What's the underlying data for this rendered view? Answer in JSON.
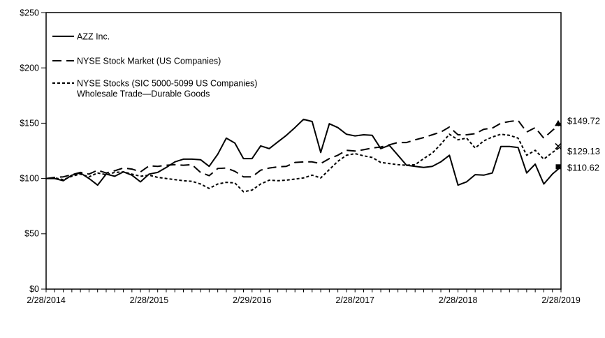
{
  "page": {
    "background": "#ffffff",
    "foreground": "#000000"
  },
  "legend": {
    "items": [
      {
        "label": "AZZ Inc.",
        "line_style": "solid"
      },
      {
        "label": "NYSE Stock Market (US Companies)",
        "line_style": "long-dash"
      },
      {
        "label_line1": "NYSE Stocks (SIC 5000-5099 US Companies)",
        "label_line2": "Wholesale Trade—Durable Goods",
        "line_style": "short-dash"
      }
    ]
  },
  "chart_data": {
    "type": "line",
    "title": "",
    "xlabel": "",
    "ylabel": "",
    "ylim": [
      0,
      250
    ],
    "y_tick_labels": [
      "$0",
      "$50",
      "$100",
      "$150",
      "$200",
      "$250"
    ],
    "x_tick_labels": [
      "2/28/2014",
      "2/28/2015",
      "2/29/2016",
      "2/28/2017",
      "2/28/2018",
      "2/28/2019"
    ],
    "x_minor_ticks": "monthly (61 ticks from 2/28/2014 to 2/28/2019)",
    "grid": false,
    "legend_position": "inside top-left",
    "line_color": "#000000",
    "series": [
      {
        "name": "AZZ Inc.",
        "style": "solid",
        "end_marker": "square",
        "end_label": "$110.62",
        "end_value": 110.62,
        "values": [
          100,
          100,
          98,
          103,
          105,
          100,
          94,
          104,
          102,
          106,
          103,
          97,
          104,
          105.5,
          110,
          115,
          117.5,
          117.5,
          117,
          111,
          122,
          136.5,
          132,
          118,
          118,
          129.5,
          127,
          133,
          139,
          146,
          153.5,
          151.5,
          123.5,
          149.5,
          146,
          140,
          138.5,
          139.5,
          139,
          127,
          130,
          121,
          112,
          111,
          110,
          111,
          115,
          121,
          94,
          97,
          103.5,
          103,
          105,
          129,
          129,
          128,
          105,
          113,
          95,
          104,
          110.62
        ]
      },
      {
        "name": "NYSE Stock Market (US Companies)",
        "style": "long-dash",
        "end_marker": "triangle",
        "end_label": "$149.72",
        "end_value": 149.72,
        "values": [
          100,
          101,
          101.5,
          103.5,
          105.5,
          104,
          107.5,
          105,
          107,
          109.5,
          108.5,
          106,
          111.5,
          111,
          112,
          112.5,
          112,
          112.5,
          105.5,
          102.5,
          109,
          109.5,
          106.5,
          101.5,
          101.5,
          107.5,
          109.5,
          110.5,
          111,
          114.5,
          115,
          115,
          113.5,
          118,
          121,
          125.5,
          124.8,
          126,
          127.5,
          128.5,
          130.5,
          132.5,
          132.5,
          135,
          137,
          139.5,
          142,
          146.5,
          139.5,
          139.5,
          140.5,
          144.5,
          145.5,
          150,
          151.5,
          152.5,
          142,
          146,
          136.5,
          143.5,
          149.72
        ]
      },
      {
        "name": "NYSE Stocks (SIC 5000-5099 US Companies) Wholesale Trade—Durable Goods",
        "style": "short-dash",
        "end_marker": "x",
        "end_label": "$129.13",
        "end_value": 129.13,
        "values": [
          100,
          100.5,
          99,
          102,
          104,
          101.5,
          105,
          103.5,
          105.5,
          106,
          104,
          102,
          103,
          101,
          100,
          99,
          98,
          97.5,
          95,
          91,
          95,
          96.5,
          96,
          88,
          89.5,
          95,
          98.5,
          98,
          98.5,
          99.5,
          100.5,
          103,
          100.5,
          108,
          115.5,
          121,
          122.5,
          120.5,
          119,
          114.5,
          113.5,
          112.5,
          112,
          112.5,
          118,
          123,
          131,
          140,
          135,
          136.5,
          127.5,
          134,
          137.5,
          140,
          139,
          136.5,
          121,
          125.5,
          117.5,
          123.5,
          129.13
        ]
      }
    ]
  }
}
